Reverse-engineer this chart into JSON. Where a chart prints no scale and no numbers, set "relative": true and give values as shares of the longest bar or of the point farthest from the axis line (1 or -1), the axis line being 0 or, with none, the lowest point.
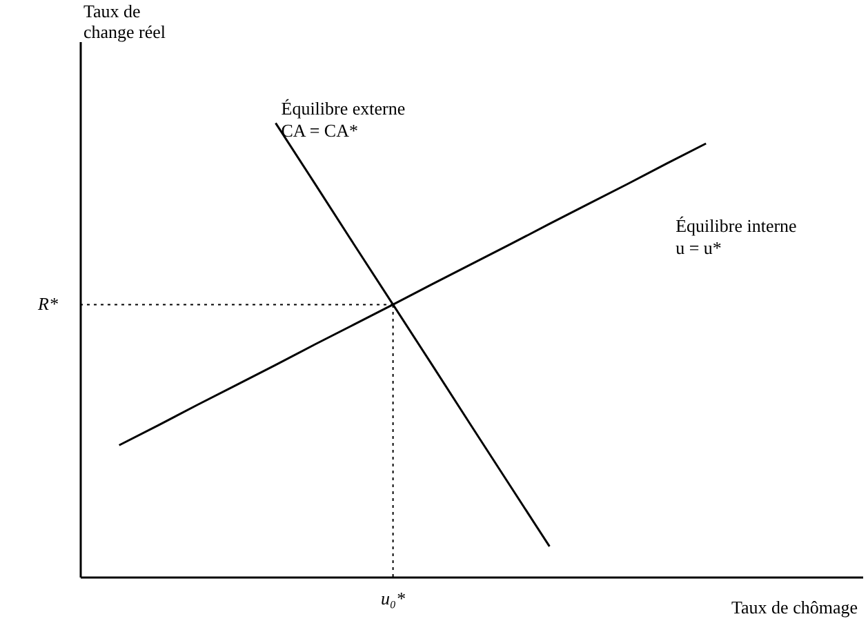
{
  "chart_data": {
    "type": "line",
    "relative": true,
    "xlabel": "Taux de chômage",
    "ylabel": "Taux de\nchange réel",
    "categories": [
      null,
      null,
      null,
      null,
      null,
      null,
      null,
      null,
      null,
      null,
      null,
      null,
      null,
      null,
      null,
      null,
      null,
      null,
      null,
      null,
      null
    ],
    "series": [
      {
        "color": "#000000",
        "values": [
          null,
          null,
          null,
          null,
          null,
          1.0,
          0.867,
          0.733,
          0.6,
          0.467,
          0.333,
          0.2,
          0.067,
          null,
          null,
          null,
          null,
          null,
          null,
          null,
          null
        ]
      },
      {
        "color": "#000000",
        "values": [
          null,
          0.29,
          0.334,
          0.379,
          0.423,
          0.467,
          0.512,
          0.556,
          0.6,
          0.645,
          0.689,
          0.733,
          0.778,
          0.822,
          0.866,
          0.911,
          0.955,
          null,
          null,
          null,
          null
        ]
      }
    ],
    "ref_lines": [
      {
        "axis": "y",
        "value": 0.6,
        "label": "R*",
        "line_style": "dotted",
        "color": "#000000"
      },
      {
        "axis": "x",
        "label": "u₀*",
        "line_style": "dotted",
        "color": "#000000"
      }
    ],
    "annotations": [
      "Équilibre externe\nCA = CA*",
      "Équilibre interne\nu = u*"
    ],
    "marker": "none",
    "line_style": "solid"
  }
}
